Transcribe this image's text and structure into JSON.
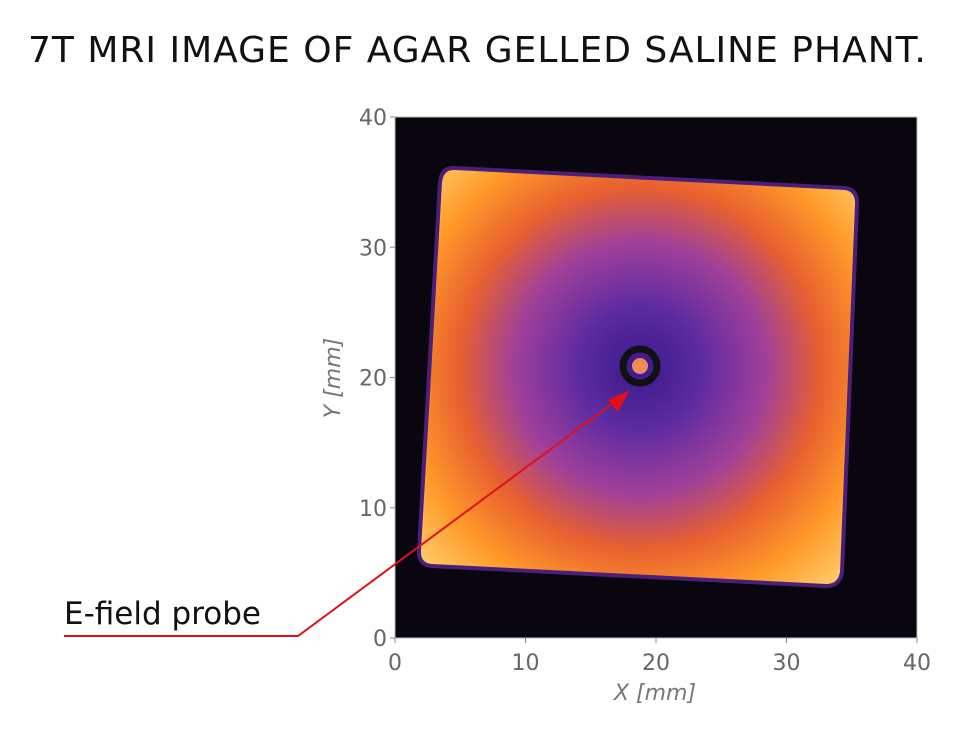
{
  "title": "7T MRI IMAGE OF AGAR GELLED SALINE PHANT.",
  "chart_data": {
    "type": "image",
    "xlabel": "X [mm]",
    "ylabel": "Y [mm]",
    "annotation": "E-field probe",
    "xlim": [
      0,
      40
    ],
    "ylim": [
      0,
      40
    ],
    "xticks": [
      0,
      10,
      20,
      30,
      40
    ],
    "yticks": [
      0,
      10,
      20,
      30,
      40
    ]
  }
}
